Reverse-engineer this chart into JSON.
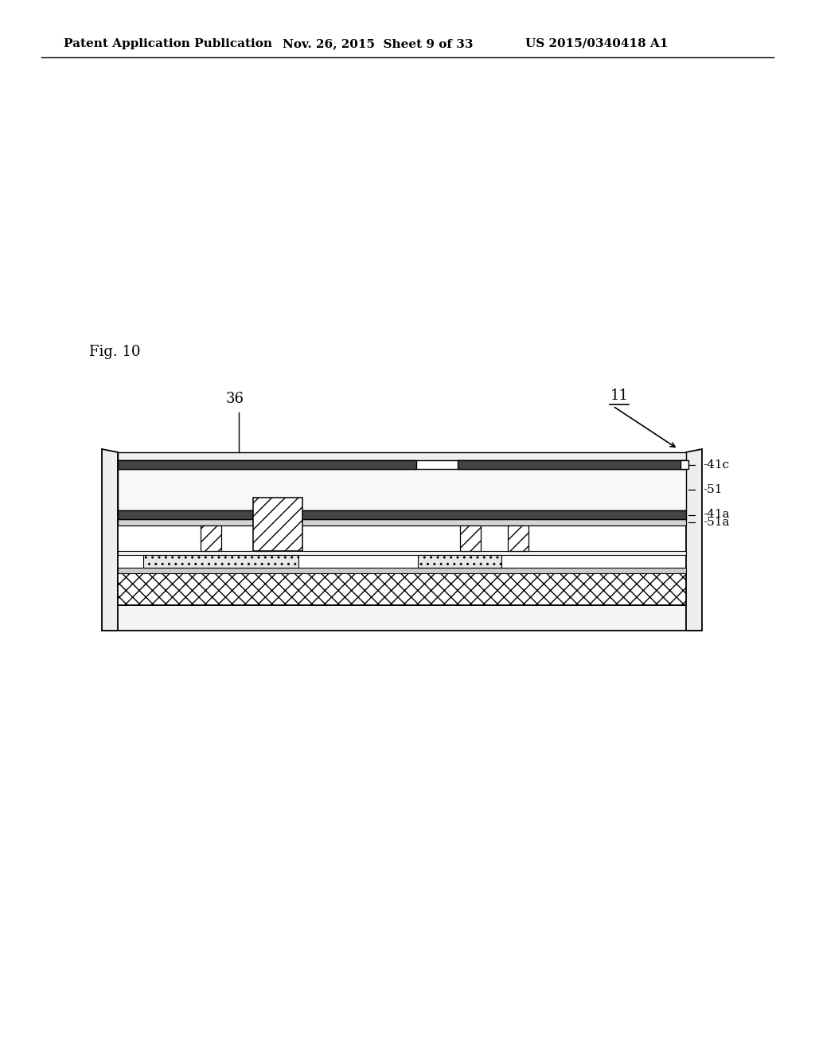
{
  "bg_color": "#ffffff",
  "header_text1": "Patent Application Publication",
  "header_text2": "Nov. 26, 2015  Sheet 9 of 33",
  "header_text3": "US 2015/0340418 A1",
  "fig_label": "Fig. 10",
  "label_36": "36",
  "label_11": "11",
  "label_41c": "41c",
  "label_51": "51",
  "label_41a": "41a",
  "label_51a": "51a"
}
